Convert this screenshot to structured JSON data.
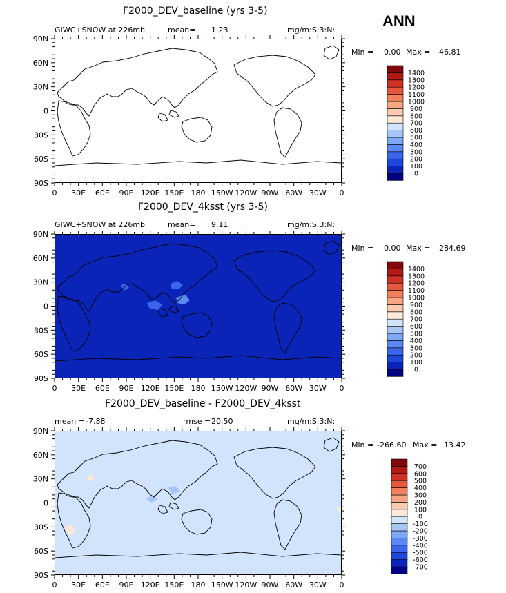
{
  "season": "ANN",
  "panels": [
    {
      "title": "F2000_DEV_baseline (yrs 3-5)",
      "left_label": "GIWC+SNOW at 226mb",
      "mean_label": "mean=",
      "mean_value": "1.23",
      "units": "mg/m:S:3:N:",
      "min_label": "Min =",
      "min_value": "0.00",
      "max_label": "Max =",
      "max_value": "46.81",
      "fill_color": "#ffffff",
      "colorbar_colors": [
        "#000080",
        "#0b24b8",
        "#1c46dc",
        "#3a66ee",
        "#5b88f4",
        "#7ea8f6",
        "#a6c6f8",
        "#d2e4fb",
        "#fce9d8",
        "#fbc9ae",
        "#f7a584",
        "#f0805e",
        "#e6583d",
        "#cf3125",
        "#b11912",
        "#82070b"
      ],
      "colorbar_labels": [
        "0",
        "100",
        "200",
        "300",
        "400",
        "500",
        "600",
        "700",
        "800",
        "900",
        "1000",
        "1100",
        "1200",
        "1300",
        "1400"
      ]
    },
    {
      "title": "F2000_DEV_4ksst (yrs 3-5)",
      "left_label": "GIWC+SNOW at 226mb",
      "mean_label": "mean=",
      "mean_value": "9.11",
      "units": "mg/m:S:3:N:",
      "min_label": "Min =",
      "min_value": "0.00",
      "max_label": "Max =",
      "max_value": "284.69",
      "fill_color": "#0b24b8",
      "colorbar_colors": [
        "#000080",
        "#0b24b8",
        "#1c46dc",
        "#3a66ee",
        "#5b88f4",
        "#7ea8f6",
        "#a6c6f8",
        "#d2e4fb",
        "#fce9d8",
        "#fbc9ae",
        "#f7a584",
        "#f0805e",
        "#e6583d",
        "#cf3125",
        "#b11912",
        "#82070b"
      ],
      "colorbar_labels": [
        "0",
        "100",
        "200",
        "300",
        "400",
        "500",
        "600",
        "700",
        "800",
        "900",
        "1000",
        "1100",
        "1200",
        "1300",
        "1400"
      ]
    },
    {
      "title": "F2000_DEV_baseline - F2000_DEV_4ksst",
      "left_label": "mean =",
      "mean_label": "",
      "mean_value": "-7.88",
      "rmse_label": "rmse =",
      "rmse_value": "20.50",
      "units": "mg/m:S:3:N:",
      "min_label": "Min =",
      "min_value": "-266.60",
      "max_label": "Max =",
      "max_value": "13.42",
      "fill_color": "#d2e4fb",
      "colorbar_colors": [
        "#000080",
        "#0b24b8",
        "#1c46dc",
        "#3a66ee",
        "#5b88f4",
        "#7ea8f6",
        "#a6c6f8",
        "#d2e4fb",
        "#fce9d8",
        "#fbc9ae",
        "#f7a584",
        "#f0805e",
        "#e6583d",
        "#cf3125",
        "#b11912",
        "#82070b"
      ],
      "colorbar_labels": [
        "-700",
        "-600",
        "-500",
        "-400",
        "-300",
        "-200",
        "-100",
        "0",
        "100",
        "200",
        "300",
        "400",
        "500",
        "600",
        "700"
      ]
    }
  ],
  "lat_labels": [
    "90N",
    "60N",
    "30N",
    "0",
    "30S",
    "60S",
    "90S"
  ],
  "lon_labels": [
    "0",
    "30E",
    "60E",
    "90E",
    "120E",
    "150E",
    "180",
    "150W",
    "120W",
    "90W",
    "60W",
    "30W",
    "0"
  ]
}
